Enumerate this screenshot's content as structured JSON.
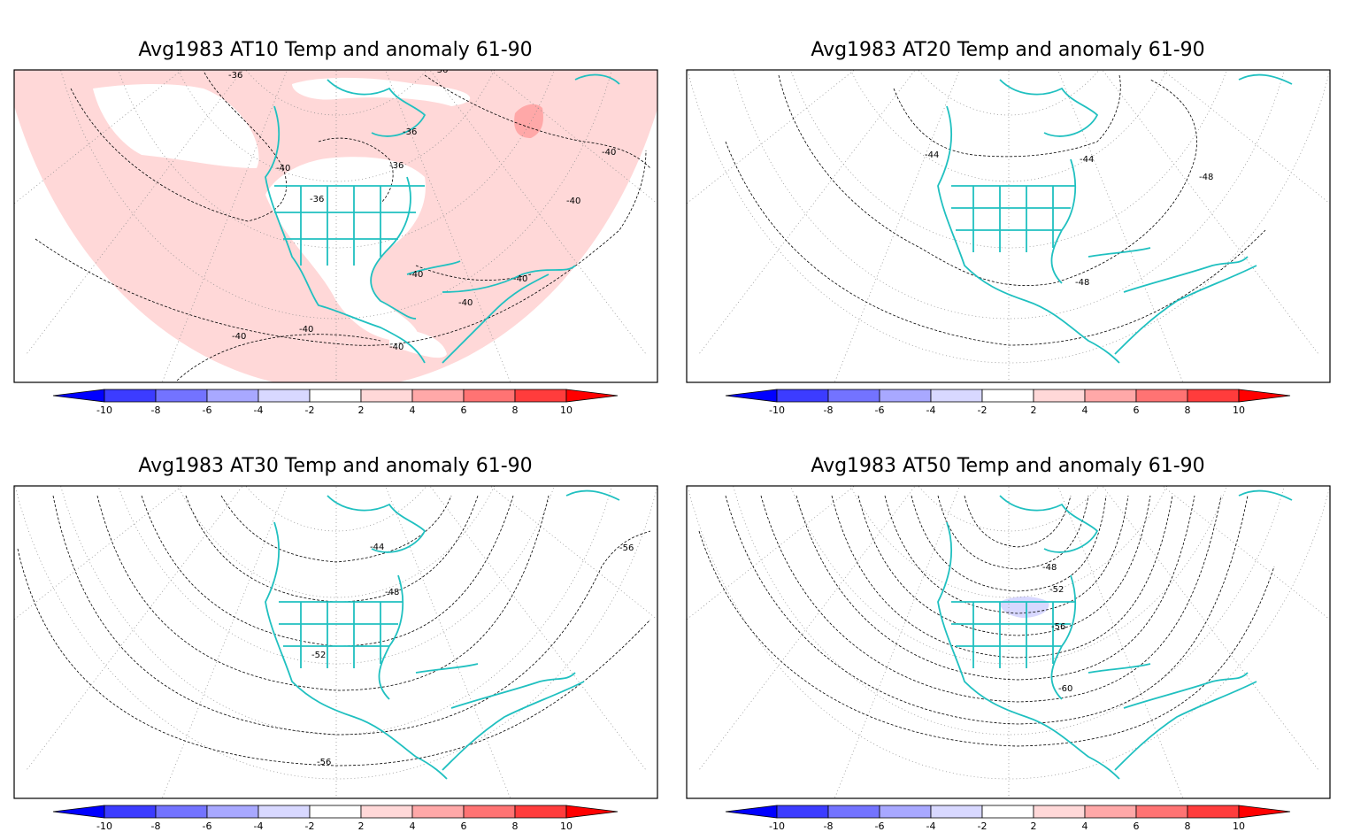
{
  "panels": [
    {
      "title": "Avg1983 AT10 Temp and anomaly 61-90",
      "anomaly_shading": "positive 2-4 over most of domain",
      "contour_labels": [
        "-36",
        "-36",
        "-36",
        "-36",
        "-36",
        "-40",
        "-40",
        "-40",
        "-40",
        "-40",
        "-40",
        "-40",
        "-40",
        "-40"
      ]
    },
    {
      "title": "Avg1983 AT20 Temp and anomaly 61-90",
      "anomaly_shading": "none",
      "contour_labels": [
        "-44",
        "-44",
        "-48",
        "-48"
      ]
    },
    {
      "title": "Avg1983 AT30 Temp and anomaly 61-90",
      "anomaly_shading": "none",
      "contour_labels": [
        "-44",
        "-48",
        "-52",
        "-56",
        "-56"
      ]
    },
    {
      "title": "Avg1983 AT50 Temp and anomaly 61-90",
      "anomaly_shading": "small negative -2 to -4 near Great Lakes",
      "contour_labels": [
        "-48",
        "-52",
        "-56",
        "-60"
      ]
    }
  ],
  "colorbar": {
    "ticks": [
      "-10",
      "-8",
      "-6",
      "-4",
      "-2",
      "2",
      "4",
      "6",
      "8",
      "10"
    ],
    "colors": [
      "#0000ff",
      "#3c3cff",
      "#7373ff",
      "#a8a8ff",
      "#d8d8ff",
      "#ffffff",
      "#ffd8d8",
      "#ffa8a8",
      "#ff7373",
      "#ff3c3c",
      "#ff0000"
    ]
  },
  "colors": {
    "coastline": "#20c0c0",
    "contour": "#000000",
    "grid": "#888888",
    "anomaly_pos_light": "#ffd8d8",
    "anomaly_pos_med": "#ffa8a8",
    "anomaly_neg_light": "#d8d8ff"
  }
}
